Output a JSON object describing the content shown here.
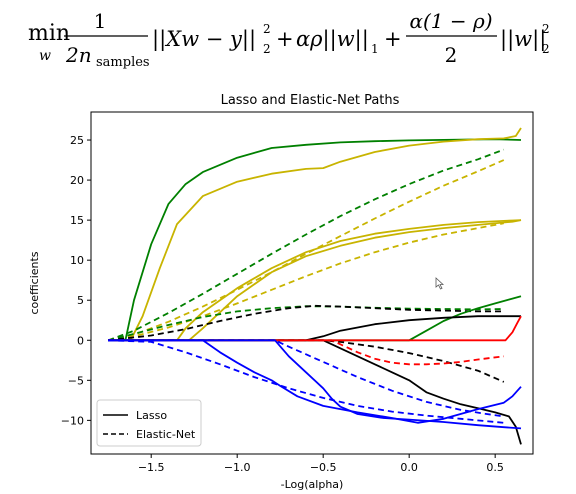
{
  "formula": {
    "min": "min",
    "min_var": "w",
    "frac1_num": "1",
    "frac1_den": "2n",
    "frac1_den_sub": "samples",
    "term1": "||Xw − y||",
    "term1_sub": "2",
    "term1_sup": "2",
    "plus1": "+",
    "term2": "αρ||w||",
    "term2_sub": "1",
    "plus2": "+",
    "frac2_num": "α(1 − ρ)",
    "frac2_den": "2",
    "term3": "||w||",
    "term3_sub": "2",
    "term3_sup": "2"
  },
  "chart_data": {
    "type": "line",
    "title": "Lasso and Elastic-Net Paths",
    "xlabel": "-Log(alpha)",
    "ylabel": "coefficients",
    "xlim": [
      -1.85,
      0.72
    ],
    "ylim": [
      -14.2,
      28.5
    ],
    "xticks": [
      -1.5,
      -1.0,
      -0.5,
      0.0,
      0.5
    ],
    "xtick_labels": [
      "−1.5",
      "−1.0",
      "−0.5",
      "0.0",
      "0.5"
    ],
    "yticks": [
      -10,
      -5,
      0,
      5,
      10,
      15,
      20,
      25
    ],
    "ytick_labels": [
      "−10",
      "−5",
      "0",
      "5",
      "10",
      "15",
      "20",
      "25"
    ],
    "grid": false,
    "legend_position": "lower-left",
    "legend": [
      {
        "label": "Lasso",
        "dash": "solid"
      },
      {
        "label": "Elastic-Net",
        "dash": "dashed"
      }
    ],
    "series": [
      {
        "color": "#008000",
        "dash": "solid",
        "points": [
          [
            -1.75,
            0
          ],
          [
            -1.65,
            0
          ],
          [
            -1.6,
            5
          ],
          [
            -1.5,
            12
          ],
          [
            -1.4,
            17
          ],
          [
            -1.3,
            19.5
          ],
          [
            -1.2,
            21
          ],
          [
            -1.0,
            22.8
          ],
          [
            -0.8,
            24
          ],
          [
            -0.6,
            24.4
          ],
          [
            -0.4,
            24.7
          ],
          [
            -0.2,
            24.85
          ],
          [
            0.0,
            24.95
          ],
          [
            0.3,
            25.05
          ],
          [
            0.5,
            25.1
          ],
          [
            0.65,
            25.0
          ]
        ]
      },
      {
        "color": "#c8b400",
        "dash": "solid",
        "points": [
          [
            -1.75,
            0
          ],
          [
            -1.62,
            0
          ],
          [
            -1.55,
            3
          ],
          [
            -1.45,
            9
          ],
          [
            -1.35,
            14.5
          ],
          [
            -1.2,
            18
          ],
          [
            -1.0,
            19.8
          ],
          [
            -0.8,
            20.8
          ],
          [
            -0.6,
            21.4
          ],
          [
            -0.5,
            21.5
          ],
          [
            -0.4,
            22.3
          ],
          [
            -0.2,
            23.5
          ],
          [
            0.0,
            24.3
          ],
          [
            0.2,
            24.8
          ],
          [
            0.4,
            25.1
          ],
          [
            0.55,
            25.2
          ],
          [
            0.62,
            25.5
          ],
          [
            0.65,
            26.5
          ]
        ]
      },
      {
        "color": "#c8b400",
        "dash": "solid",
        "points": [
          [
            -1.75,
            0
          ],
          [
            -1.35,
            0
          ],
          [
            -1.3,
            1.5
          ],
          [
            -1.2,
            3.5
          ],
          [
            -1.0,
            6.5
          ],
          [
            -0.8,
            9
          ],
          [
            -0.6,
            11
          ],
          [
            -0.4,
            12.4
          ],
          [
            -0.2,
            13.3
          ],
          [
            0.0,
            13.9
          ],
          [
            0.2,
            14.4
          ],
          [
            0.4,
            14.75
          ],
          [
            0.6,
            14.95
          ],
          [
            0.65,
            15.0
          ]
        ]
      },
      {
        "color": "#c8b400",
        "dash": "solid",
        "points": [
          [
            -1.75,
            0
          ],
          [
            -1.28,
            0
          ],
          [
            -1.2,
            1.5
          ],
          [
            -1.0,
            5.5
          ],
          [
            -0.8,
            8.5
          ],
          [
            -0.6,
            10.5
          ],
          [
            -0.4,
            11.8
          ],
          [
            -0.2,
            12.8
          ],
          [
            0.0,
            13.5
          ],
          [
            0.2,
            14.0
          ],
          [
            0.4,
            14.4
          ],
          [
            0.6,
            14.8
          ],
          [
            0.65,
            15.0
          ]
        ]
      },
      {
        "color": "#008000",
        "dash": "dashed",
        "points": [
          [
            -1.75,
            0
          ],
          [
            -1.6,
            1.2
          ],
          [
            -1.4,
            3.4
          ],
          [
            -1.2,
            5.8
          ],
          [
            -1.0,
            8.3
          ],
          [
            -0.8,
            10.8
          ],
          [
            -0.6,
            13.2
          ],
          [
            -0.4,
            15.5
          ],
          [
            -0.2,
            17.6
          ],
          [
            0.0,
            19.5
          ],
          [
            0.2,
            21.2
          ],
          [
            0.4,
            22.6
          ],
          [
            0.55,
            23.8
          ]
        ]
      },
      {
        "color": "#c8b400",
        "dash": "dashed",
        "points": [
          [
            -1.75,
            0
          ],
          [
            -1.6,
            0.7
          ],
          [
            -1.4,
            2.3
          ],
          [
            -1.2,
            4.2
          ],
          [
            -1.0,
            6.3
          ],
          [
            -0.8,
            8.5
          ],
          [
            -0.6,
            10.8
          ],
          [
            -0.4,
            13
          ],
          [
            -0.2,
            15.2
          ],
          [
            0.0,
            17.3
          ],
          [
            0.2,
            19.3
          ],
          [
            0.4,
            21.1
          ],
          [
            0.55,
            22.5
          ]
        ]
      },
      {
        "color": "#c8b400",
        "dash": "dashed",
        "points": [
          [
            -1.75,
            0
          ],
          [
            -1.6,
            0.5
          ],
          [
            -1.4,
            1.6
          ],
          [
            -1.2,
            3.0
          ],
          [
            -1.0,
            4.6
          ],
          [
            -0.8,
            6.3
          ],
          [
            -0.6,
            8.0
          ],
          [
            -0.4,
            9.6
          ],
          [
            -0.2,
            11.0
          ],
          [
            0.0,
            12.2
          ],
          [
            0.2,
            13.2
          ],
          [
            0.4,
            14.0
          ],
          [
            0.55,
            14.6
          ]
        ]
      },
      {
        "color": "#008000",
        "dash": "dashed",
        "points": [
          [
            -1.75,
            0
          ],
          [
            -1.6,
            0.8
          ],
          [
            -1.4,
            1.9
          ],
          [
            -1.2,
            2.9
          ],
          [
            -1.0,
            3.6
          ],
          [
            -0.8,
            4.0
          ],
          [
            -0.6,
            4.25
          ],
          [
            -0.4,
            4.2
          ],
          [
            -0.2,
            4.05
          ],
          [
            0.0,
            3.95
          ],
          [
            0.2,
            3.9
          ],
          [
            0.4,
            3.85
          ],
          [
            0.55,
            3.9
          ]
        ]
      },
      {
        "color": "#000000",
        "dash": "dashed",
        "points": [
          [
            -1.75,
            0
          ],
          [
            -1.5,
            0.6
          ],
          [
            -1.3,
            1.4
          ],
          [
            -1.1,
            2.4
          ],
          [
            -0.9,
            3.3
          ],
          [
            -0.7,
            4.0
          ],
          [
            -0.55,
            4.3
          ],
          [
            -0.4,
            4.2
          ],
          [
            -0.2,
            4.0
          ],
          [
            0.0,
            3.8
          ],
          [
            0.2,
            3.7
          ],
          [
            0.4,
            3.6
          ],
          [
            0.55,
            3.6
          ]
        ]
      },
      {
        "color": "#008000",
        "dash": "solid",
        "points": [
          [
            -1.75,
            0
          ],
          [
            0.0,
            0
          ],
          [
            0.1,
            1.2
          ],
          [
            0.2,
            2.4
          ],
          [
            0.3,
            3.3
          ],
          [
            0.4,
            4.0
          ],
          [
            0.5,
            4.6
          ],
          [
            0.6,
            5.2
          ],
          [
            0.65,
            5.5
          ]
        ]
      },
      {
        "color": "#000000",
        "dash": "solid",
        "points": [
          [
            -1.75,
            0
          ],
          [
            -0.6,
            0
          ],
          [
            -0.5,
            0.5
          ],
          [
            -0.4,
            1.2
          ],
          [
            -0.2,
            2.0
          ],
          [
            0.0,
            2.5
          ],
          [
            0.2,
            2.8
          ],
          [
            0.4,
            3.0
          ],
          [
            0.65,
            3.0
          ]
        ]
      },
      {
        "color": "#000000",
        "dash": "solid",
        "points": [
          [
            -1.75,
            0
          ],
          [
            -0.5,
            0
          ],
          [
            -0.4,
            -1.0
          ],
          [
            -0.3,
            -2.0
          ],
          [
            -0.2,
            -3.0
          ],
          [
            -0.1,
            -4.0
          ],
          [
            0.0,
            -5.0
          ],
          [
            0.1,
            -6.5
          ],
          [
            0.2,
            -7.3
          ],
          [
            0.3,
            -8.0
          ],
          [
            0.4,
            -8.5
          ],
          [
            0.5,
            -9.0
          ],
          [
            0.58,
            -9.5
          ],
          [
            0.62,
            -10.8
          ],
          [
            0.65,
            -13.0
          ]
        ]
      },
      {
        "color": "#000000",
        "dash": "dashed",
        "points": [
          [
            -1.75,
            0
          ],
          [
            -0.5,
            0
          ],
          [
            -0.4,
            -0.2
          ],
          [
            -0.2,
            -0.8
          ],
          [
            0.0,
            -1.6
          ],
          [
            0.2,
            -2.6
          ],
          [
            0.4,
            -3.8
          ],
          [
            0.55,
            -5.2
          ]
        ]
      },
      {
        "color": "#ff0000",
        "dash": "solid",
        "points": [
          [
            -1.75,
            0
          ],
          [
            0.56,
            0
          ],
          [
            0.6,
            1.0
          ],
          [
            0.63,
            2.2
          ],
          [
            0.65,
            3.0
          ]
        ]
      },
      {
        "color": "#ff0000",
        "dash": "dashed",
        "points": [
          [
            -1.75,
            0
          ],
          [
            -0.45,
            0
          ],
          [
            -0.4,
            -0.5
          ],
          [
            -0.3,
            -1.5
          ],
          [
            -0.2,
            -2.3
          ],
          [
            -0.1,
            -2.8
          ],
          [
            0.0,
            -3.0
          ],
          [
            0.1,
            -3.0
          ],
          [
            0.2,
            -2.9
          ],
          [
            0.3,
            -2.7
          ],
          [
            0.4,
            -2.4
          ],
          [
            0.55,
            -2.0
          ]
        ]
      },
      {
        "color": "#0000ff",
        "dash": "solid",
        "points": [
          [
            -1.75,
            0
          ],
          [
            -1.2,
            0
          ],
          [
            -1.1,
            -1.5
          ],
          [
            -1.0,
            -2.8
          ],
          [
            -0.9,
            -4.0
          ],
          [
            -0.8,
            -5.0
          ],
          [
            -0.75,
            -5.7
          ],
          [
            -0.65,
            -7.0
          ],
          [
            -0.5,
            -8.2
          ],
          [
            -0.3,
            -9.0
          ],
          [
            -0.1,
            -9.7
          ],
          [
            0.05,
            -10.3
          ],
          [
            0.2,
            -9.8
          ],
          [
            0.4,
            -8.6
          ],
          [
            0.55,
            -7.8
          ],
          [
            0.6,
            -7.0
          ],
          [
            0.65,
            -5.8
          ]
        ]
      },
      {
        "color": "#0000ff",
        "dash": "solid",
        "points": [
          [
            -1.75,
            0
          ],
          [
            -0.78,
            0
          ],
          [
            -0.7,
            -2.0
          ],
          [
            -0.6,
            -4.0
          ],
          [
            -0.5,
            -6.0
          ],
          [
            -0.45,
            -7.3
          ],
          [
            -0.4,
            -8.3
          ],
          [
            -0.3,
            -9.2
          ],
          [
            -0.15,
            -9.7
          ],
          [
            0.0,
            -9.9
          ],
          [
            0.2,
            -10.2
          ],
          [
            0.4,
            -10.6
          ],
          [
            0.55,
            -10.85
          ],
          [
            0.65,
            -11.0
          ]
        ]
      },
      {
        "color": "#0000ff",
        "dash": "dashed",
        "points": [
          [
            -1.75,
            0
          ],
          [
            -1.5,
            -0.2
          ],
          [
            -1.3,
            -1.5
          ],
          [
            -1.1,
            -3.0
          ],
          [
            -0.9,
            -4.6
          ],
          [
            -0.7,
            -6.0
          ],
          [
            -0.5,
            -7.2
          ],
          [
            -0.3,
            -8.2
          ],
          [
            -0.1,
            -8.9
          ],
          [
            0.1,
            -9.4
          ],
          [
            0.3,
            -9.8
          ],
          [
            0.45,
            -10.1
          ],
          [
            0.55,
            -10.3
          ]
        ]
      },
      {
        "color": "#0000ff",
        "dash": "dashed",
        "points": [
          [
            -1.75,
            0
          ],
          [
            -0.78,
            0
          ],
          [
            -0.7,
            -0.8
          ],
          [
            -0.5,
            -2.7
          ],
          [
            -0.3,
            -4.6
          ],
          [
            -0.1,
            -6.3
          ],
          [
            0.1,
            -7.7
          ],
          [
            0.3,
            -8.7
          ],
          [
            0.45,
            -9.2
          ],
          [
            0.55,
            -9.5
          ]
        ]
      }
    ]
  }
}
